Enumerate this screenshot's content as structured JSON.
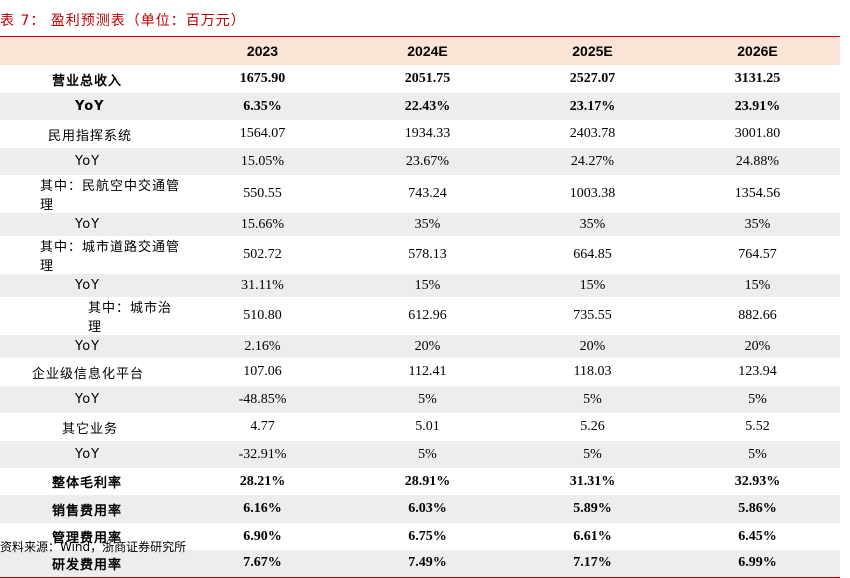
{
  "title": "表 7：  盈利预测表（单位：百万元）",
  "table": {
    "header": [
      "",
      "2023",
      "2024E",
      "2025E",
      "2026E"
    ],
    "rows": [
      [
        "营业总收入",
        "1675.90",
        "2051.75",
        "2527.07",
        "3131.25"
      ],
      [
        "YoY",
        "6.35%",
        "22.43%",
        "23.17%",
        "23.91%"
      ],
      [
        "民用指挥系统",
        "1564.07",
        "1934.33",
        "2403.78",
        "3001.80"
      ],
      [
        "YoY",
        "15.05%",
        "23.67%",
        "24.27%",
        "24.88%"
      ],
      [
        "其中：民航空中交通管理",
        "550.55",
        "743.24",
        "1003.38",
        "1354.56"
      ],
      [
        "YoY",
        "15.66%",
        "35%",
        "35%",
        "35%"
      ],
      [
        "其中：城市道路交通管理",
        "502.72",
        "578.13",
        "664.85",
        "764.57"
      ],
      [
        "YoY",
        "31.11%",
        "15%",
        "15%",
        "15%"
      ],
      [
        "其中：城市治理",
        "510.80",
        "612.96",
        "735.55",
        "882.66"
      ],
      [
        "YoY",
        "2.16%",
        "20%",
        "20%",
        "20%"
      ],
      [
        "企业级信息化平台",
        "107.06",
        "112.41",
        "118.03",
        "123.94"
      ],
      [
        "YoY",
        "-48.85%",
        "5%",
        "5%",
        "5%"
      ],
      [
        "其它业务",
        "4.77",
        "5.01",
        "5.26",
        "5.52"
      ],
      [
        "YoY",
        "-32.91%",
        "5%",
        "5%",
        "5%"
      ],
      [
        "整体毛利率",
        "28.21%",
        "28.91%",
        "31.31%",
        "32.93%"
      ],
      [
        "销售费用率",
        "6.16%",
        "6.03%",
        "5.89%",
        "5.86%"
      ],
      [
        "管理费用率",
        "6.90%",
        "6.75%",
        "6.61%",
        "6.45%"
      ],
      [
        "研发费用率",
        "7.67%",
        "7.49%",
        "7.17%",
        "6.99%"
      ]
    ]
  },
  "source": "资料来源：Wind，浙商证券研究所"
}
